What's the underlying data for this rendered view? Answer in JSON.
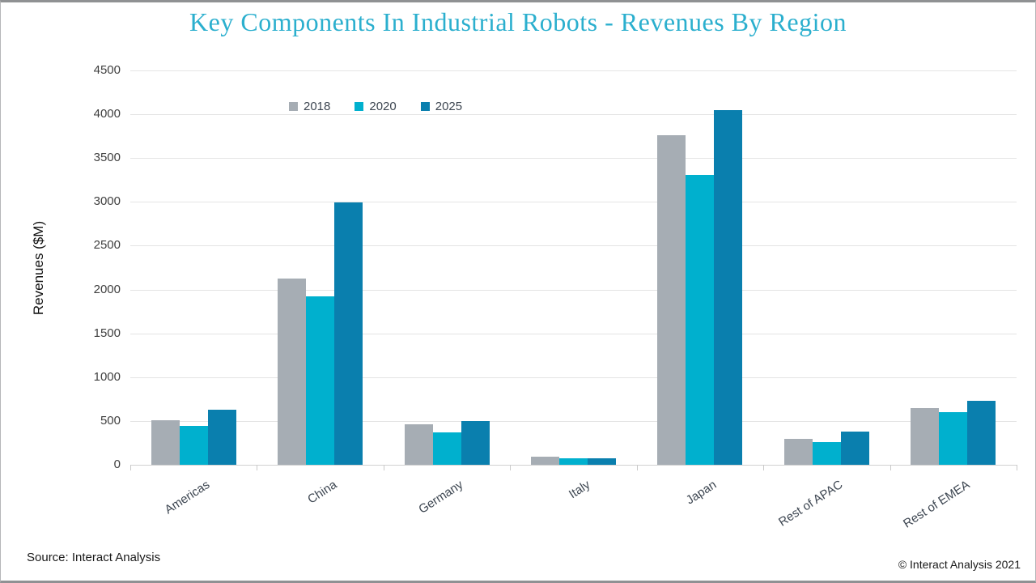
{
  "title": "Key Components In Industrial Robots - Revenues By Region",
  "footer": {
    "source": "Source: Interact Analysis",
    "copyright": "© Interact Analysis 2021"
  },
  "colors": {
    "title_text": "#2bafce",
    "series_2018": "#a6adb4",
    "series_2020": "#00b0ce",
    "series_2025": "#0a7fae",
    "gridline": "#e4e4e4",
    "axis_text": "#3f3f3f",
    "category_text": "#3d4651"
  },
  "chart_data": {
    "type": "bar",
    "title": "Key Components In Industrial Robots - Revenues By Region",
    "categories": [
      "Americas",
      "China",
      "Germany",
      "Italy",
      "Japan",
      "Rest of APAC",
      "Rest of EMEA"
    ],
    "series": [
      {
        "name": "2018",
        "color": "#a6adb4",
        "values": [
          510,
          2130,
          460,
          90,
          3760,
          300,
          645
        ]
      },
      {
        "name": "2020",
        "color": "#00b0ce",
        "values": [
          440,
          1920,
          370,
          70,
          3310,
          260,
          600
        ]
      },
      {
        "name": "2025",
        "color": "#0a7fae",
        "values": [
          625,
          2990,
          500,
          70,
          4050,
          375,
          730
        ]
      }
    ],
    "xlabel": "",
    "ylabel": "Revenues ($M)",
    "ylim": [
      0,
      4500
    ],
    "ytick_step": 500,
    "grid": true,
    "legend_position": "top-left-inside"
  }
}
